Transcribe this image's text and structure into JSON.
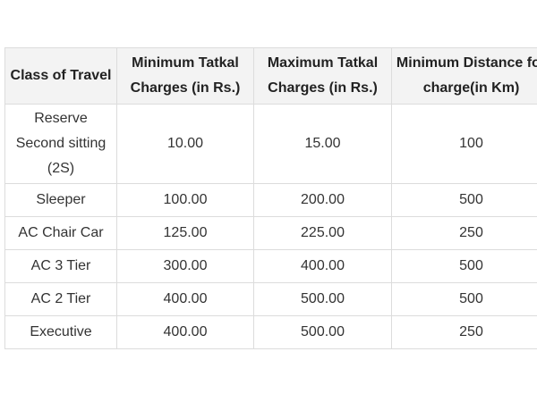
{
  "table": {
    "headers": [
      "Class of Travel",
      "Minimum Tatkal Charges (in Rs.)",
      "Maximum Tatkal Charges (in Rs.)",
      "Minimum Distance for charge(in Km)"
    ],
    "rows": [
      [
        "Reserve Second sitting (2S)",
        "10.00",
        "15.00",
        "100"
      ],
      [
        "Sleeper",
        "100.00",
        "200.00",
        "500"
      ],
      [
        "AC Chair Car",
        "125.00",
        "225.00",
        "250"
      ],
      [
        "AC 3 Tier",
        "300.00",
        "400.00",
        "500"
      ],
      [
        "AC 2 Tier",
        "400.00",
        "500.00",
        "500"
      ],
      [
        "Executive",
        "400.00",
        "500.00",
        "250"
      ]
    ]
  }
}
